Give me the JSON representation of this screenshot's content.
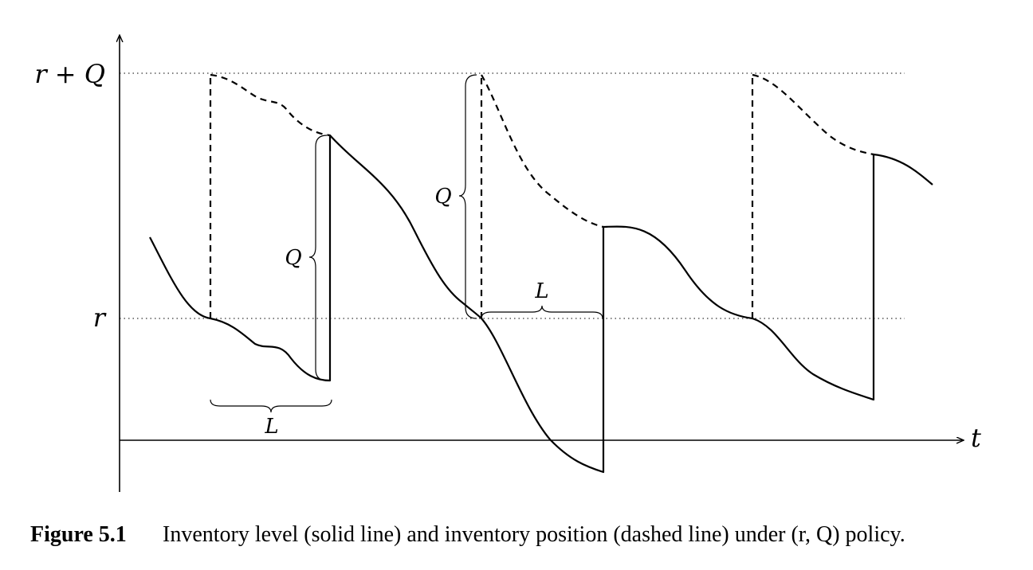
{
  "diagram": {
    "y_labels": {
      "top": "r + Q",
      "reorder": "r"
    },
    "x_label": "t",
    "brace_labels": {
      "lead_time_1": "L",
      "lead_time_2": "L",
      "order_qty_1": "Q",
      "order_qty_2": "Q"
    }
  },
  "caption": {
    "number": "Figure 5.1",
    "text": "Inventory level (solid line) and inventory position (dashed line) under (r, Q) policy."
  }
}
